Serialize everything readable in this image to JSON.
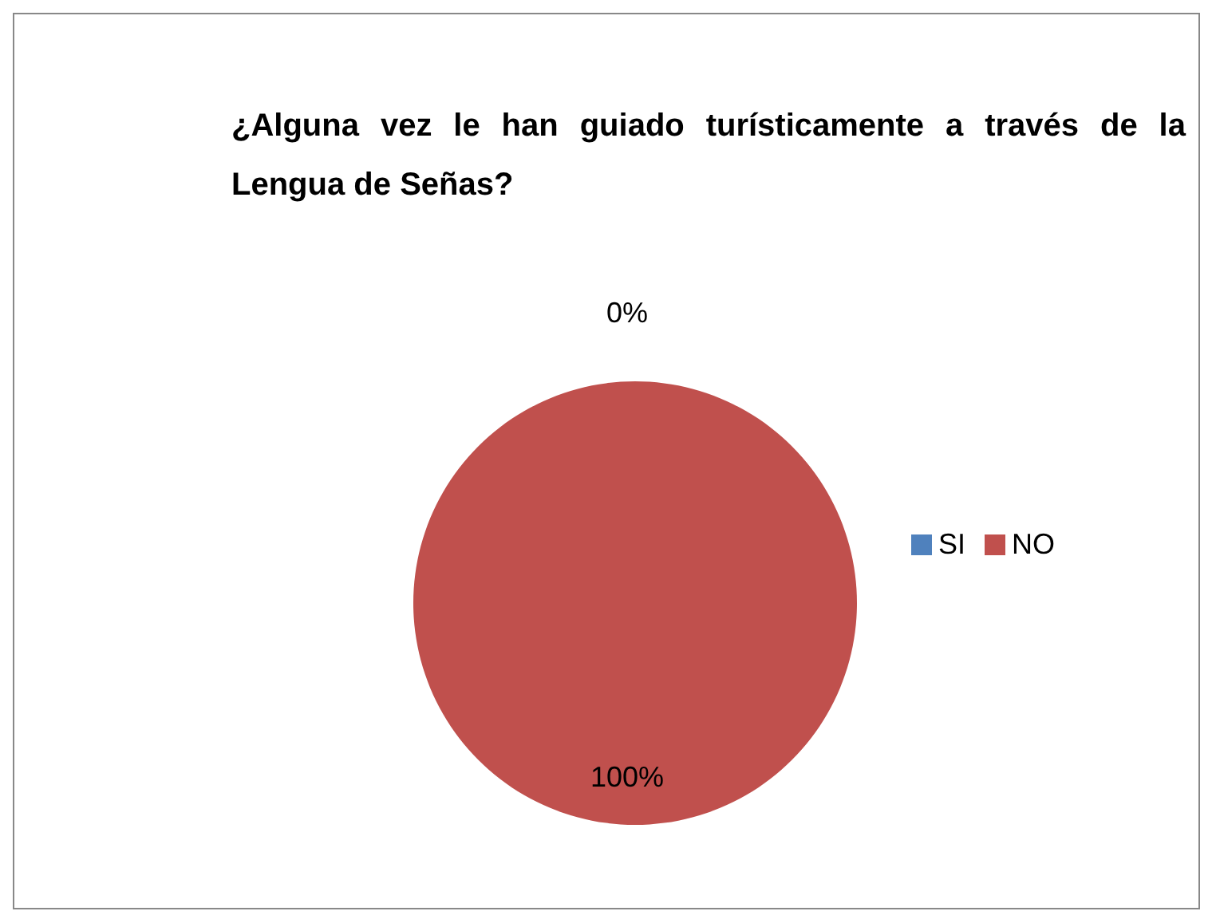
{
  "chart_data": {
    "type": "pie",
    "title": "¿Alguna vez le han guiado turísticamente a través  de la Lengua de Señas?",
    "categories": [
      "SI",
      "NO"
    ],
    "values": [
      0,
      100
    ],
    "colors": [
      "#4f81bd",
      "#c0504d"
    ],
    "value_labels": [
      "0%",
      "100%"
    ],
    "legend": "right"
  }
}
